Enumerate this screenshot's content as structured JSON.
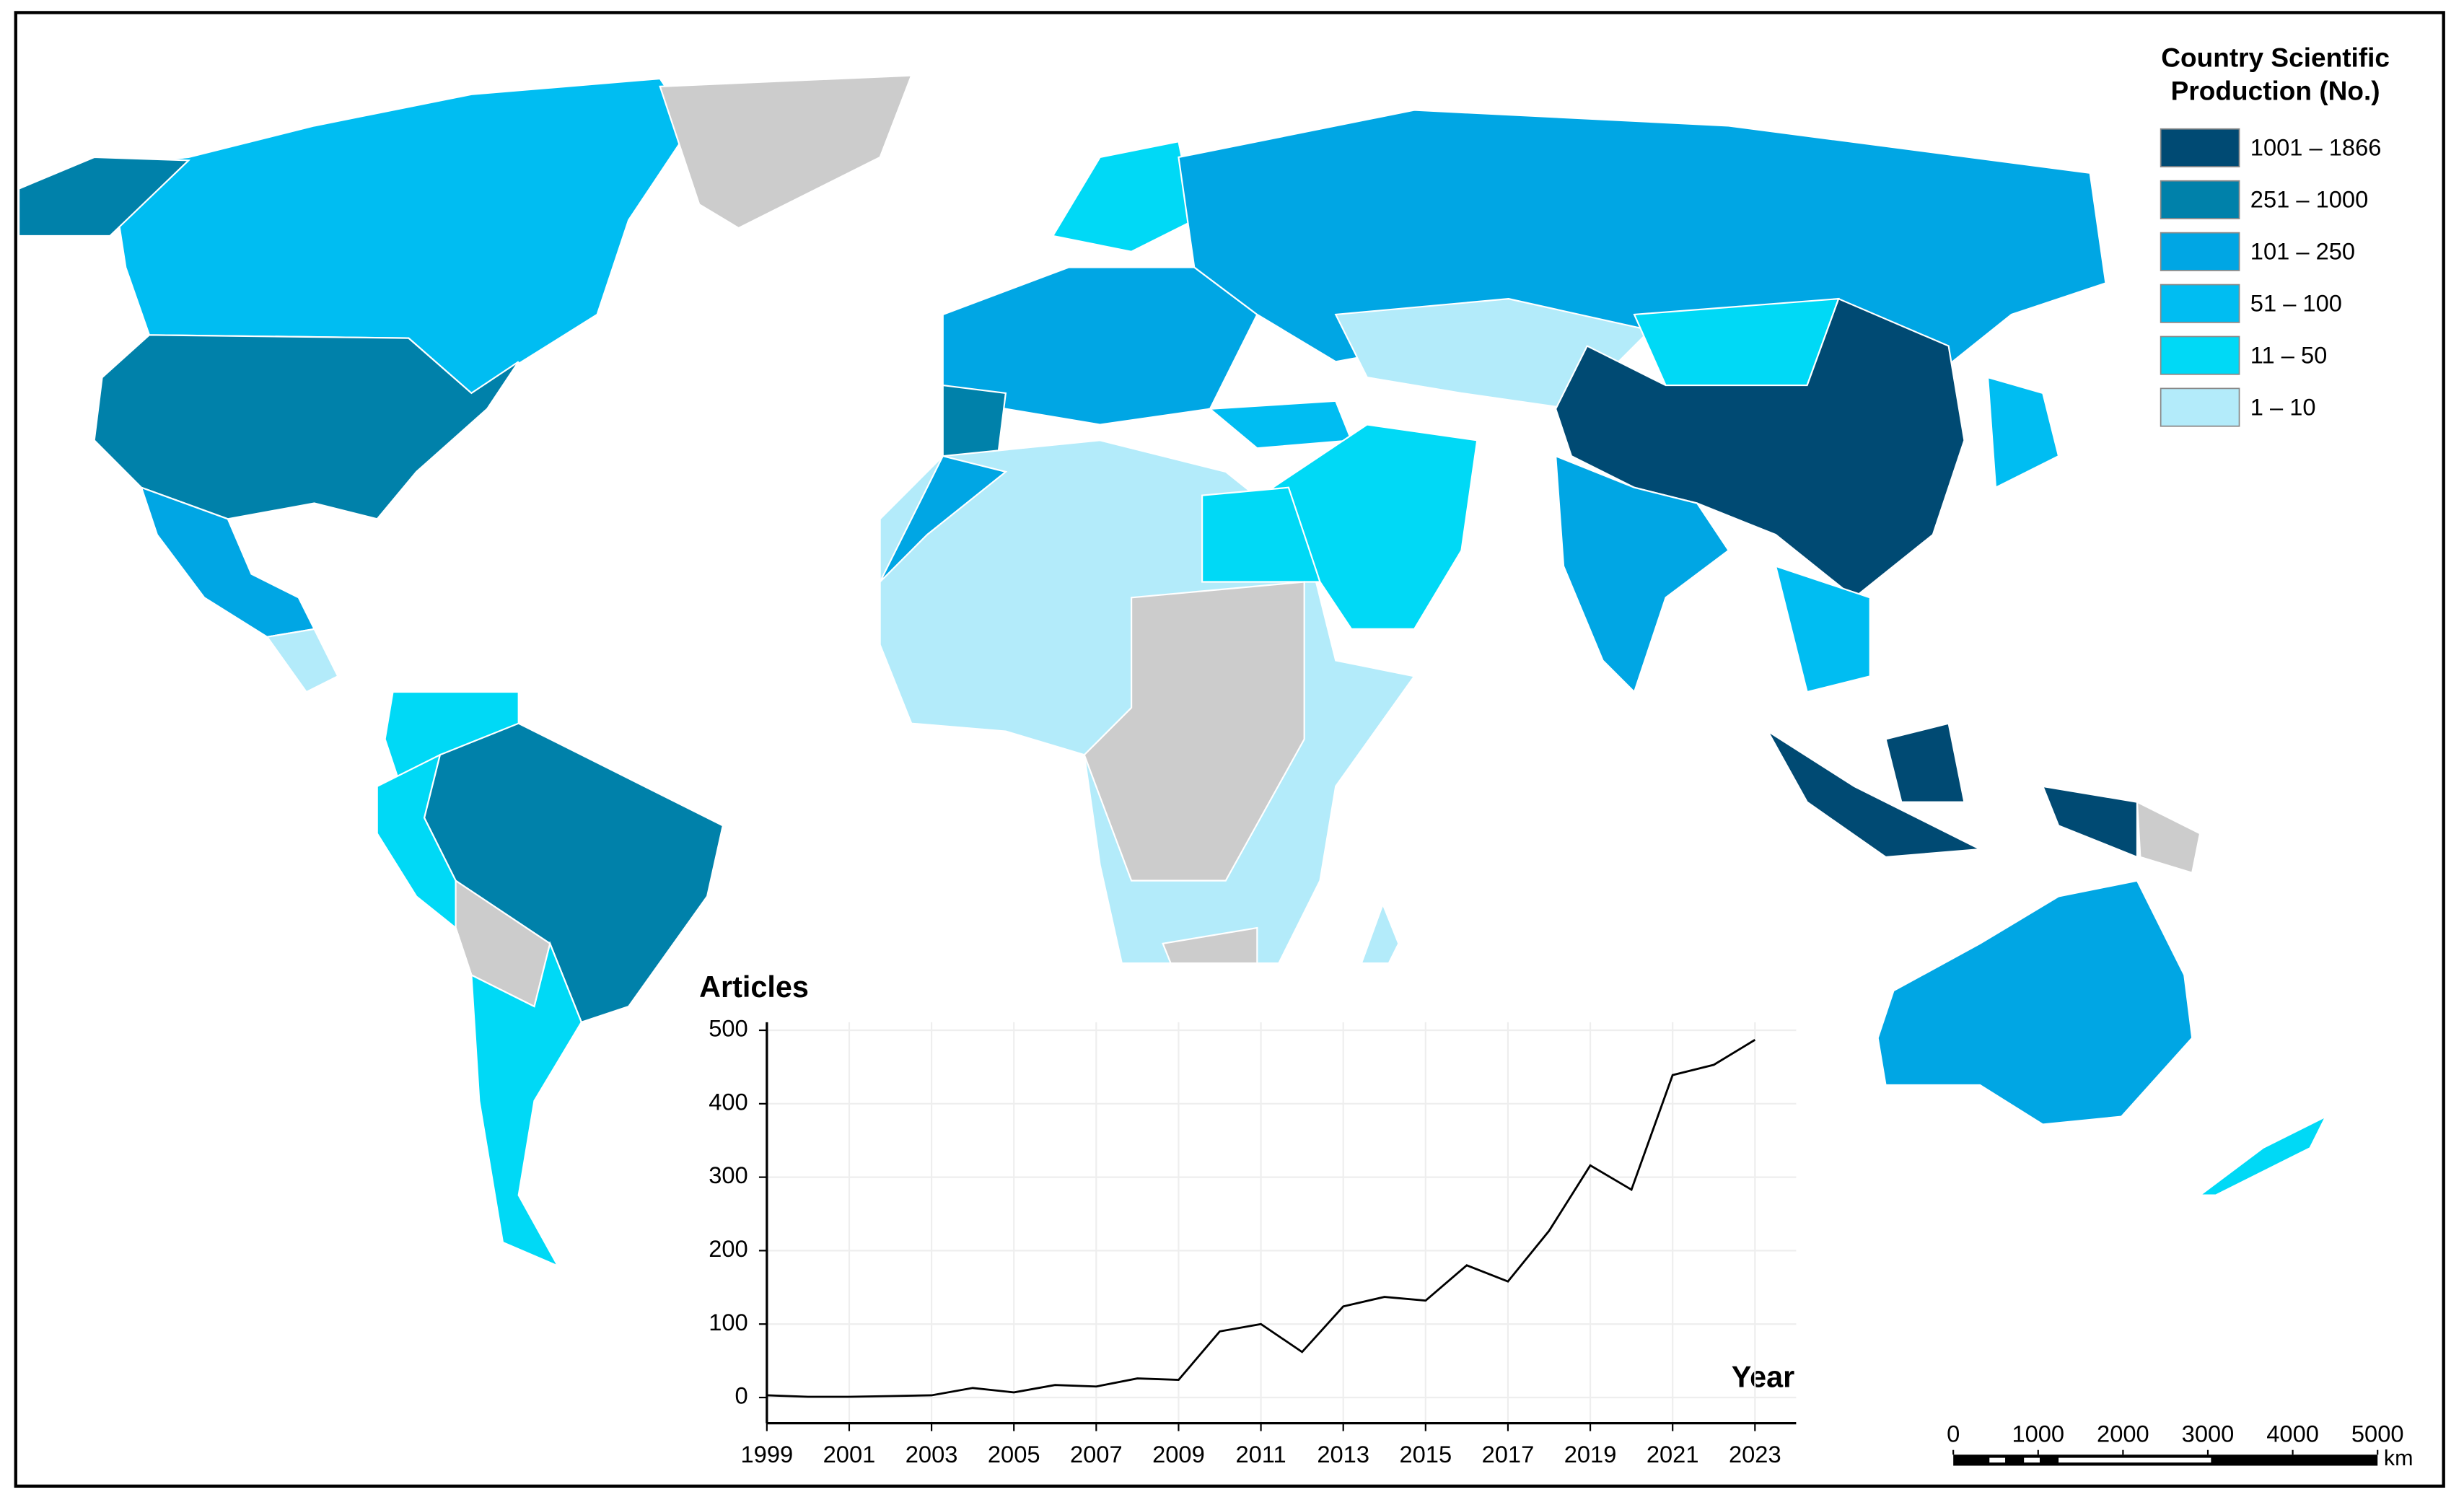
{
  "legend": {
    "title": "Country Scientific Production (No.)",
    "items": [
      {
        "label": "1001 – 1866",
        "color": "#004a73"
      },
      {
        "label": "251 – 1000",
        "color": "#0081aa"
      },
      {
        "label": "101 – 250",
        "color": "#00a6e4"
      },
      {
        "label": "51 – 100",
        "color": "#00bdf2"
      },
      {
        "label": "11 – 50",
        "color": "#00d9f6"
      },
      {
        "label": "1 – 10",
        "color": "#b3ebfa"
      }
    ]
  },
  "chart_data": {
    "type": "line",
    "ylabel": "Articles",
    "xlabel": "Year",
    "x": [
      1999,
      2000,
      2001,
      2002,
      2003,
      2004,
      2005,
      2006,
      2007,
      2008,
      2009,
      2010,
      2011,
      2012,
      2013,
      2014,
      2015,
      2016,
      2017,
      2018,
      2019,
      2020,
      2021,
      2022,
      2023
    ],
    "series": [
      {
        "name": "Articles",
        "color": "#000000",
        "values": [
          3,
          1,
          1,
          2,
          3,
          13,
          7,
          17,
          15,
          26,
          24,
          90,
          100,
          62,
          124,
          137,
          132,
          180,
          158,
          227,
          316,
          283,
          439,
          453,
          487
        ]
      }
    ],
    "xlim": [
      1999,
      2024
    ],
    "ylim": [
      -35,
      511
    ],
    "xticks": [
      1999,
      2001,
      2003,
      2005,
      2007,
      2009,
      2011,
      2013,
      2015,
      2017,
      2019,
      2021,
      2023
    ],
    "yticks": [
      0,
      100,
      200,
      300,
      400,
      500
    ],
    "grid": true
  },
  "scale_bar": {
    "ticks": [
      0,
      1000,
      2000,
      3000,
      4000,
      5000
    ],
    "unit": "km"
  }
}
